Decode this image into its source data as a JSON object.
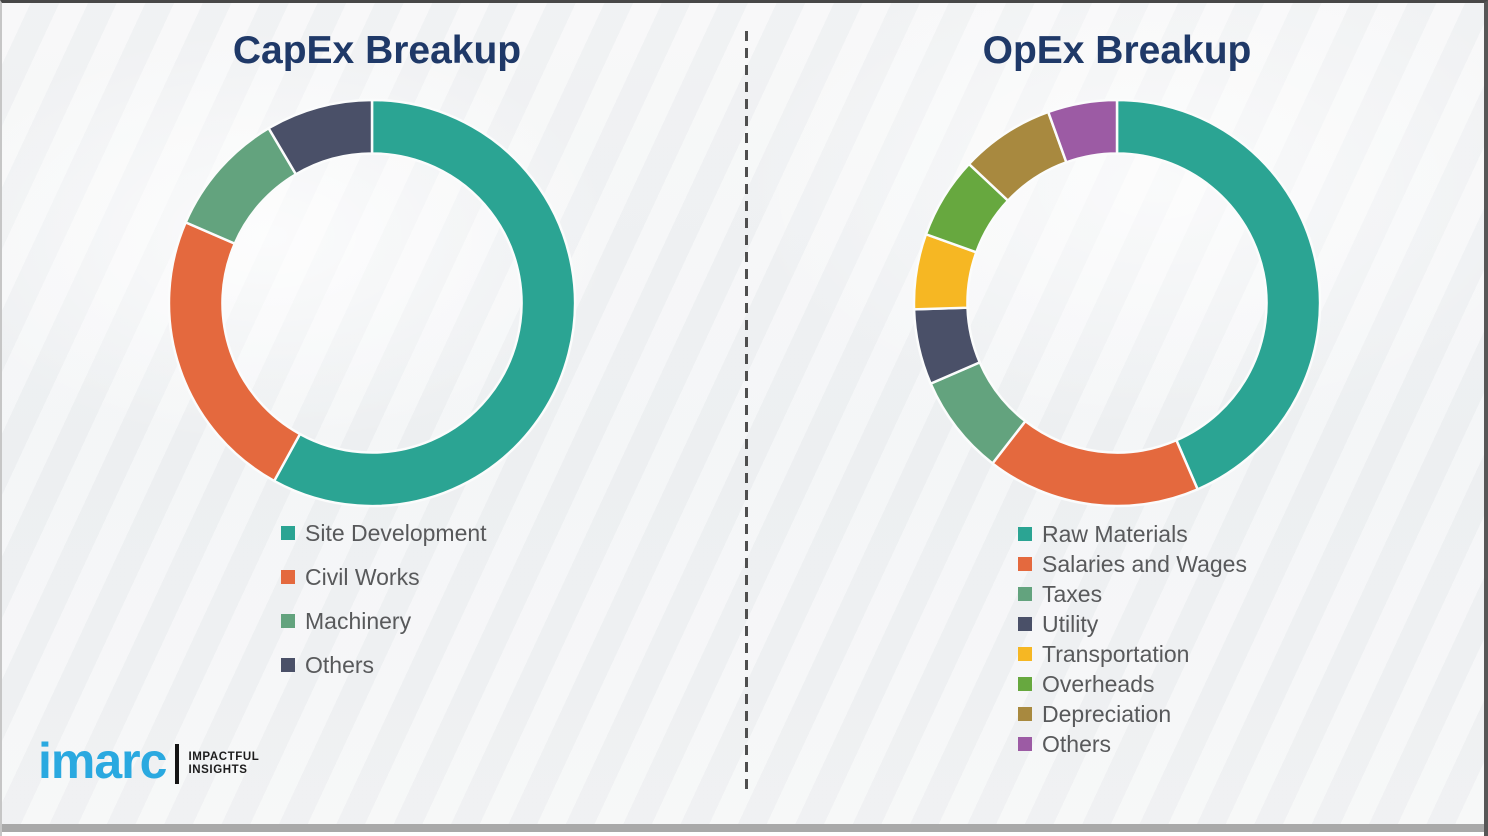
{
  "chart_data": [
    {
      "type": "pie",
      "variant": "donut",
      "title": "CapEx Breakup",
      "value_unit": "percent_estimated_from_arc_angles",
      "start_angle_deg": 0,
      "direction": "clockwise",
      "legend_position": "below-left",
      "segments": [
        {
          "label": "Site Development",
          "value": 58,
          "color": "#2BA493"
        },
        {
          "label": "Civil Works",
          "value": 23.5,
          "color": "#E4693E"
        },
        {
          "label": "Machinery",
          "value": 10,
          "color": "#63A37E"
        },
        {
          "label": "Others",
          "value": 8.5,
          "color": "#4A5068"
        }
      ]
    },
    {
      "type": "pie",
      "variant": "donut",
      "title": "OpEx Breakup",
      "value_unit": "percent_estimated_from_arc_angles",
      "start_angle_deg": 0,
      "direction": "clockwise",
      "legend_position": "below-left",
      "segments": [
        {
          "label": "Raw Materials",
          "value": 43.5,
          "color": "#2BA493"
        },
        {
          "label": "Salaries and Wages",
          "value": 17,
          "color": "#E4693E"
        },
        {
          "label": "Taxes",
          "value": 8,
          "color": "#63A37E"
        },
        {
          "label": "Utility",
          "value": 6,
          "color": "#4A5068"
        },
        {
          "label": "Transportation",
          "value": 6,
          "color": "#F6B723"
        },
        {
          "label": "Overheads",
          "value": 6.5,
          "color": "#67A83F"
        },
        {
          "label": "Depreciation",
          "value": 7.5,
          "color": "#A8893F"
        },
        {
          "label": "Others",
          "value": 5.5,
          "color": "#9C5BA4"
        }
      ]
    }
  ],
  "logo": {
    "wordmark": "imarc",
    "tagline_line1": "IMPACTFUL",
    "tagline_line2": "INSIGHTS",
    "wordmark_color": "#2AA9E0"
  },
  "styles": {
    "title_color": "#1F3968",
    "legend_text_color": "#58595B",
    "divider_color": "#4F4F4F",
    "bottom_bar_color": "#A9A9A9",
    "segment_gap_color": "#FBFCFC"
  }
}
